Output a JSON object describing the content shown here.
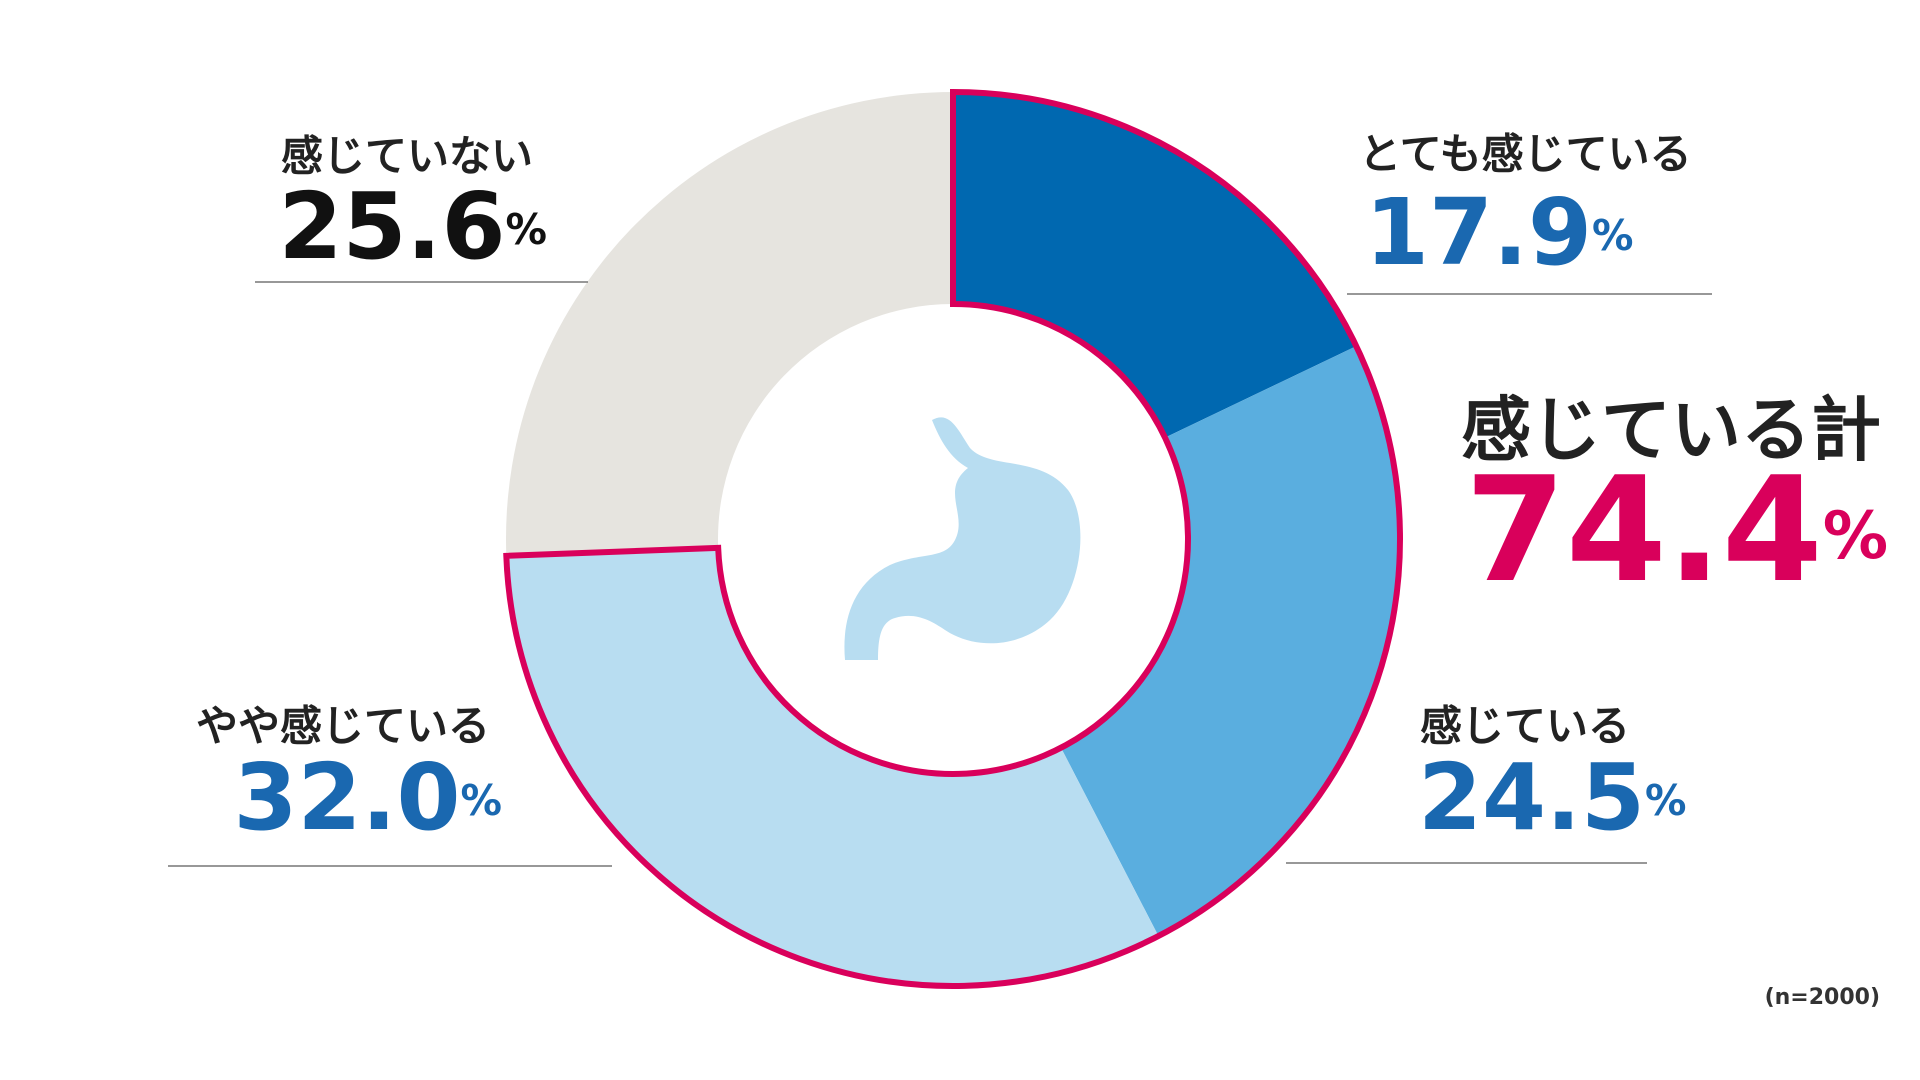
{
  "chart_data": {
    "type": "donut",
    "categories": [
      "とても感じている",
      "感じている",
      "やや感じている",
      "感じていない"
    ],
    "values": [
      17.9,
      24.5,
      32.0,
      25.6
    ],
    "value_labels": [
      "17.9%",
      "24.5%",
      "32.0%",
      "25.6%"
    ],
    "colors": [
      "#0068b0",
      "#5aaedf",
      "#b8ddf1",
      "#e6e4df"
    ],
    "label_colors": [
      "#1a68b0",
      "#1a68b0",
      "#1a68b0",
      "#111111"
    ],
    "total": {
      "label": "感じている計",
      "value": 74.4,
      "value_label": "74.4%",
      "color": "#d9005b"
    },
    "note": "(n=2000)"
  }
}
